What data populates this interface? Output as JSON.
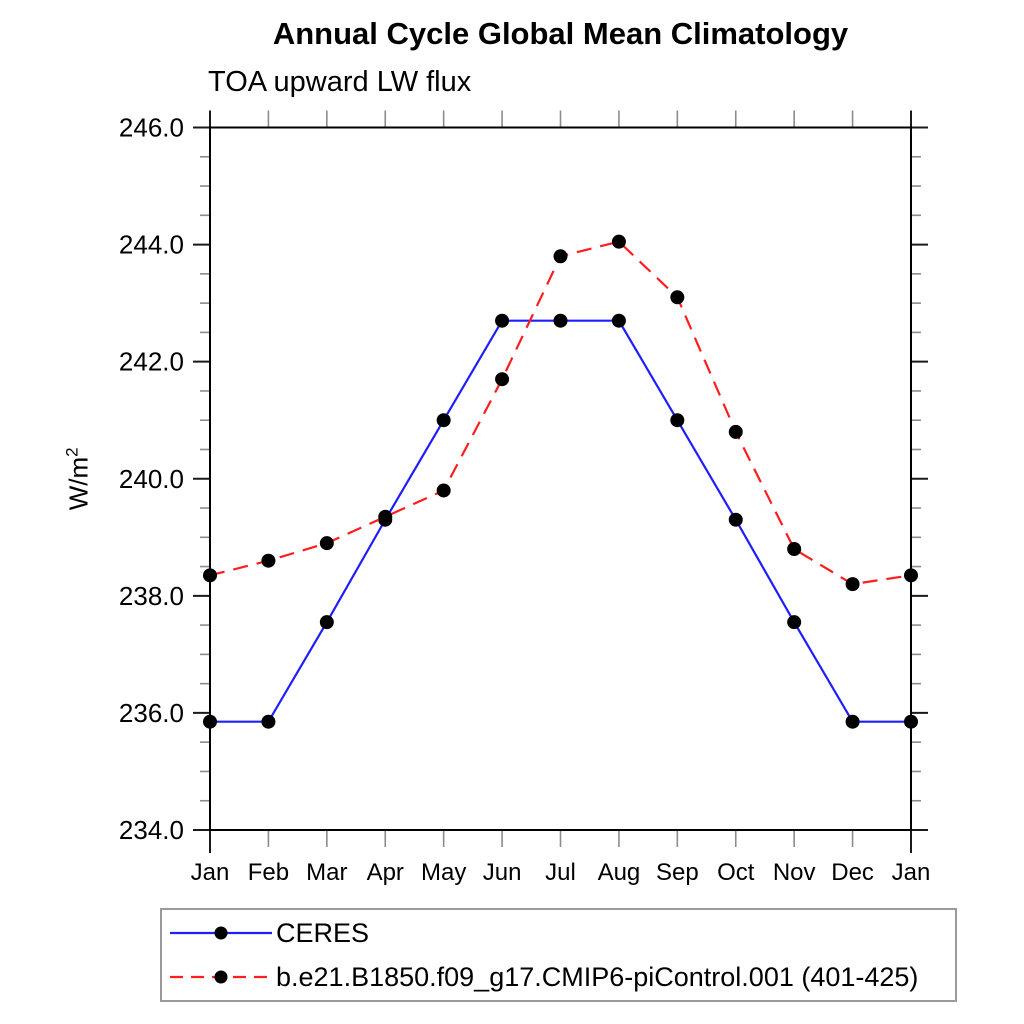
{
  "chart": {
    "title": "Annual Cycle Global Mean Climatology",
    "subtitle": "TOA upward LW flux",
    "ylabel": {
      "base": "W/m",
      "exponent": "2"
    }
  },
  "chart_data": {
    "type": "line",
    "title": "Annual Cycle Global Mean Climatology",
    "subtitle": "TOA upward LW flux",
    "ylabel": "W/m2",
    "xlabel": "",
    "categories": [
      "Jan",
      "Feb",
      "Mar",
      "Apr",
      "May",
      "Jun",
      "Jul",
      "Aug",
      "Sep",
      "Oct",
      "Nov",
      "Dec",
      "Jan"
    ],
    "series": [
      {
        "name": "CERES",
        "color": "#1e1eff",
        "line_style": "solid",
        "marker": "circle",
        "marker_color": "#000000",
        "values": [
          235.85,
          235.85,
          237.55,
          239.3,
          241.0,
          242.7,
          242.7,
          242.7,
          241.0,
          239.3,
          237.55,
          235.85,
          235.85
        ]
      },
      {
        "name": "b.e21.B1850.f09_g17.CMIP6-piControl.001 (401-425)",
        "color": "#ff1e1e",
        "line_style": "dashed",
        "marker": "circle",
        "marker_color": "#000000",
        "values": [
          238.35,
          238.6,
          238.9,
          239.35,
          239.8,
          241.7,
          243.8,
          244.05,
          243.1,
          240.8,
          238.8,
          238.2,
          238.35
        ]
      }
    ],
    "ylim": [
      234.0,
      246.0
    ],
    "ytick_major": 2.0,
    "ytick_minor": 0.5,
    "ytick_labels": [
      "234.0",
      "236.0",
      "238.0",
      "240.0",
      "242.0",
      "244.0",
      "246.0"
    ],
    "grid": false,
    "legend_position": "bottom-left"
  }
}
